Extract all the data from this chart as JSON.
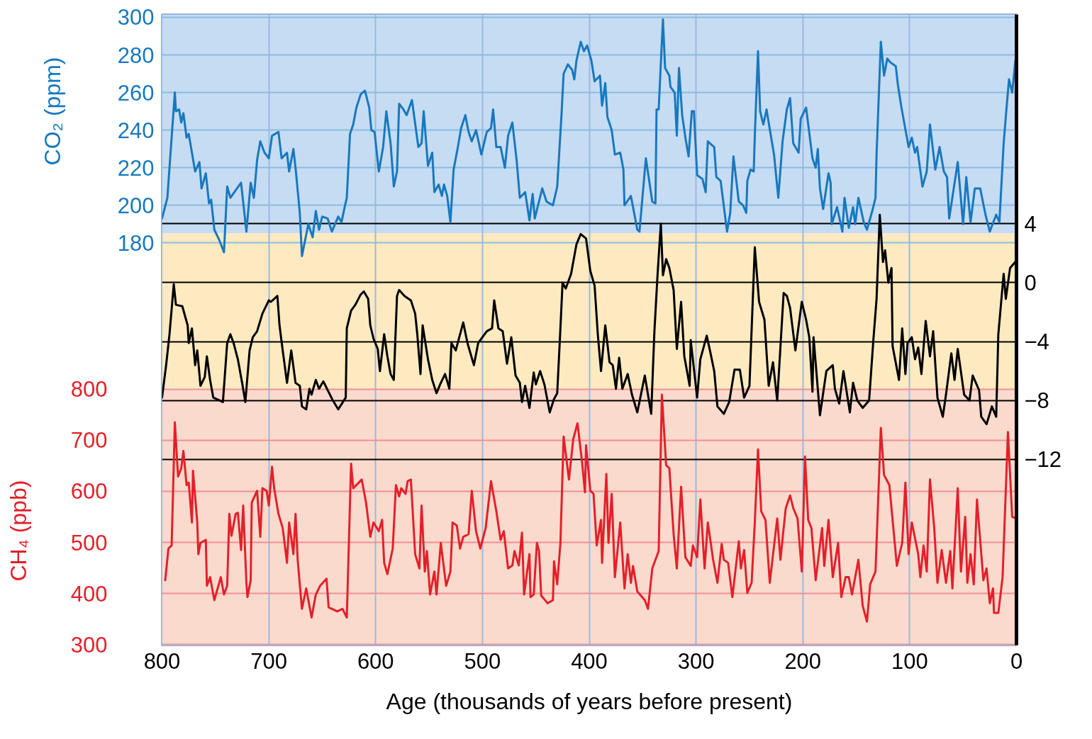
{
  "chart_data": {
    "type": "line",
    "xlabel": "Age (thousands of years before present)",
    "ylabel": "CO₂ (ppm)",
    "y3label": "CH₄ (ppb)",
    "xlim": [
      800,
      0
    ],
    "xticks": [
      800,
      700,
      600,
      500,
      400,
      300,
      200,
      100,
      0
    ],
    "ylim": [
      -34,
      301.5
    ],
    "yticks": [
      180,
      200,
      220,
      240,
      260,
      280,
      300
    ],
    "y2lim": [
      -24.6,
      18.2
    ],
    "y2ticks": [
      {
        "value": -12,
        "label": "−12"
      },
      {
        "value": -8,
        "label": "−8"
      },
      {
        "value": -4,
        "label": "−4"
      },
      0,
      4
    ],
    "y3lim": [
      299,
      1533
    ],
    "y3ticks": [
      300,
      400,
      500,
      600,
      700,
      800
    ],
    "grid": true,
    "bands": [
      {
        "axis": "y",
        "from": 185,
        "to": 301.5,
        "color": "#c6dcf2"
      },
      {
        "axis": "y",
        "from": 102,
        "to": 185,
        "color": "#fdeac0"
      },
      {
        "axis": "y3",
        "from": 299,
        "to": 800,
        "color": "#f9dacd"
      }
    ],
    "series": [
      {
        "color": "#1878be",
        "axis": "y",
        "x": [
          800,
          795,
          788,
          787,
          784,
          782,
          780,
          777,
          775,
          769,
          765,
          763,
          759,
          756,
          754,
          751,
          746,
          742,
          739,
          736,
          726,
          721,
          717,
          714,
          711,
          708,
          704,
          700,
          697,
          691,
          688,
          683,
          681,
          677,
          675,
          671,
          669,
          663,
          659,
          656,
          653,
          650,
          645,
          641,
          635,
          632,
          629,
          627,
          624,
          621,
          618,
          614,
          610,
          606,
          604,
          601,
          597,
          593,
          590,
          586,
          583,
          580,
          578,
          574,
          571,
          566,
          560,
          557,
          555,
          551,
          547,
          545,
          541,
          538,
          536,
          533,
          530,
          527,
          523,
          520,
          516,
          513,
          510,
          506,
          501,
          496,
          492,
          490,
          487,
          483,
          479,
          476,
          472,
          468,
          465,
          460,
          456,
          453,
          451,
          444,
          440,
          434,
          430,
          426,
          424,
          420,
          416,
          414,
          412,
          408,
          405,
          402,
          398,
          395,
          390,
          388,
          385,
          383,
          379,
          376,
          371,
          368,
          367,
          361,
          355,
          353,
          347,
          341,
          338,
          337,
          335,
          331,
          329,
          325,
          324,
          320,
          318,
          316,
          313,
          310,
          307,
          304,
          302,
          299,
          294,
          291,
          289,
          283,
          281,
          277,
          271,
          268,
          265,
          260,
          256,
          253,
          252,
          249,
          246,
          245,
          242,
          240,
          237,
          234,
          232,
          227,
          223,
          219,
          215,
          212,
          209,
          204,
          202,
          197,
          191,
          188,
          186,
          184,
          181,
          176,
          174,
          173,
          168,
          163,
          161,
          157,
          153,
          151,
          148,
          143,
          140,
          135,
          132,
          131,
          127,
          124,
          121,
          118,
          113,
          111,
          108,
          101,
          98,
          95,
          93,
          88,
          84,
          81,
          76,
          72,
          68,
          65,
          63,
          55,
          50,
          47,
          43,
          39,
          34,
          29,
          25,
          19,
          16,
          12,
          9,
          7,
          4,
          1,
          0
        ],
        "values": [
          193,
          204,
          260,
          250,
          251,
          244,
          249,
          236,
          238,
          218,
          223,
          209,
          217,
          201,
          203,
          187,
          181,
          175,
          210,
          204,
          212,
          186,
          212,
          204,
          224,
          234,
          228,
          225,
          237,
          239,
          225,
          228,
          218,
          230,
          220,
          196,
          173,
          190,
          183,
          197,
          187,
          194,
          193,
          186,
          194,
          191,
          199,
          204,
          238,
          243,
          252,
          259,
          261,
          252,
          240,
          239,
          218,
          231,
          250,
          233,
          210,
          218,
          254,
          251,
          248,
          256,
          231,
          233,
          250,
          221,
          228,
          207,
          211,
          205,
          211,
          205,
          191,
          219,
          231,
          241,
          248,
          239,
          234,
          240,
          227,
          239,
          241,
          251,
          231,
          231,
          220,
          237,
          244,
          224,
          204,
          207,
          192,
          206,
          193,
          209,
          202,
          200,
          210,
          248,
          270,
          275,
          272,
          267,
          277,
          287,
          282,
          285,
          277,
          266,
          269,
          253,
          265,
          247,
          240,
          227,
          228,
          219,
          200,
          205,
          187,
          186,
          225,
          202,
          201,
          251,
          251,
          299,
          273,
          269,
          263,
          260,
          237,
          273,
          248,
          236,
          226,
          250,
          250,
          216,
          214,
          207,
          234,
          231,
          215,
          213,
          186,
          196,
          226,
          202,
          200,
          196,
          213,
          219,
          218,
          237,
          282,
          250,
          243,
          251,
          244,
          227,
          204,
          234,
          251,
          257,
          233,
          228,
          246,
          252,
          225,
          220,
          230,
          209,
          198,
          217,
          212,
          190,
          199,
          186,
          204,
          188,
          199,
          190,
          204,
          191,
          187,
          197,
          204,
          227,
          287,
          269,
          278,
          276,
          274,
          264,
          253,
          231,
          236,
          228,
          231,
          210,
          218,
          243,
          219,
          231,
          218,
          215,
          193,
          223,
          190,
          215,
          191,
          209,
          209,
          195,
          186,
          195,
          191,
          233,
          254,
          267,
          260,
          277,
          278
        ]
      },
      {
        "color": "#000000",
        "axis": "y2",
        "x": [
          800,
          796,
          793,
          789,
          787,
          781,
          776,
          775,
          772,
          769,
          767,
          764,
          760,
          758,
          755,
          752,
          743,
          739,
          736,
          733,
          729,
          725,
          722,
          718,
          715,
          711,
          706,
          700,
          698,
          692,
          690,
          687,
          683,
          679,
          675,
          671,
          669,
          665,
          662,
          660,
          656,
          653,
          649,
          640,
          635,
          628,
          627,
          623,
          619,
          614,
          611,
          607,
          605,
          602,
          598,
          596,
          592,
          589,
          586,
          583,
          580,
          578,
          573,
          567,
          563,
          561,
          558,
          556,
          551,
          547,
          543,
          539,
          535,
          531,
          529,
          525,
          518,
          514,
          508,
          504,
          496,
          491,
          489,
          485,
          481,
          477,
          473,
          469,
          465,
          463,
          460,
          456,
          452,
          450,
          446,
          442,
          437,
          433,
          430,
          427,
          425,
          422,
          417,
          412,
          408,
          403,
          399,
          395,
          392,
          389,
          385,
          381,
          378,
          375,
          372,
          369,
          364,
          360,
          355,
          348,
          342,
          339,
          336,
          333,
          331,
          328,
          325,
          321,
          318,
          314,
          311,
          306,
          305,
          299,
          296,
          290,
          287,
          283,
          280,
          274,
          269,
          264,
          259,
          255,
          250,
          245,
          241,
          236,
          232,
          228,
          224,
          218,
          215,
          212,
          207,
          201,
          197,
          194,
          191,
          190,
          184,
          178,
          172,
          170,
          166,
          162,
          156,
          153,
          149,
          144,
          138,
          134,
          131,
          128,
          125,
          123,
          120,
          117,
          116,
          110,
          107,
          104,
          102,
          98,
          95,
          92,
          89,
          85,
          81,
          78,
          74,
          69,
          66,
          61,
          58,
          55,
          49,
          44,
          41,
          35,
          33,
          28,
          23,
          19,
          17,
          12,
          10,
          6,
          0
        ],
        "values": [
          -7.8,
          -5.5,
          -3.5,
          -0.1,
          -1.5,
          -1.6,
          -2.9,
          -4.1,
          -3.1,
          -5.6,
          -4.6,
          -7.0,
          -6.4,
          -5.0,
          -6.6,
          -7.8,
          -8.1,
          -4.1,
          -3.5,
          -4.1,
          -5.2,
          -6.8,
          -8.1,
          -4.6,
          -3.7,
          -3.3,
          -2.1,
          -1.2,
          -1.3,
          -0.9,
          -2.9,
          -4.6,
          -6.8,
          -4.6,
          -6.8,
          -7.0,
          -8.4,
          -8.6,
          -7.2,
          -7.6,
          -6.6,
          -7.2,
          -6.7,
          -8.0,
          -8.6,
          -7.8,
          -3.1,
          -1.9,
          -1.5,
          -0.8,
          -0.6,
          -1.1,
          -2.9,
          -3.8,
          -4.5,
          -6.0,
          -3.5,
          -5.0,
          -6.2,
          -6.6,
          -0.9,
          -0.5,
          -0.9,
          -1.2,
          -2.1,
          -3.5,
          -6.2,
          -2.9,
          -5.2,
          -6.6,
          -7.5,
          -6.8,
          -6.2,
          -7.2,
          -4.1,
          -4.6,
          -2.7,
          -4.1,
          -5.6,
          -4.1,
          -3.3,
          -3.1,
          -1.2,
          -3.1,
          -3.3,
          -5.5,
          -3.7,
          -6.3,
          -6.8,
          -8.1,
          -7.0,
          -8.5,
          -6.1,
          -6.9,
          -6.0,
          -6.9,
          -8.8,
          -7.9,
          -7.5,
          -3.1,
          0.0,
          -0.4,
          0.6,
          2.6,
          3.3,
          3.0,
          0.8,
          -0.2,
          -3.5,
          -6.0,
          -2.9,
          -5.4,
          -5.6,
          -7.2,
          -5.1,
          -7.2,
          -6.2,
          -7.6,
          -8.8,
          -6.3,
          -8.9,
          -3.3,
          0.6,
          4.0,
          0.5,
          1.6,
          1.0,
          -0.5,
          -4.5,
          -1.3,
          -5.0,
          -7.0,
          -3.9,
          -7.8,
          -5.2,
          -3.6,
          -4.6,
          -6.0,
          -8.4,
          -8.9,
          -8.1,
          -5.9,
          -5.9,
          -7.8,
          -7.0,
          2.4,
          -1.3,
          -2.5,
          -7.0,
          -5.4,
          -8.0,
          -0.7,
          -0.9,
          -1.7,
          -4.6,
          -1.3,
          -2.5,
          -3.7,
          -7.4,
          -3.7,
          -9.0,
          -6.0,
          -5.6,
          -7.2,
          -8.2,
          -6.0,
          -8.8,
          -6.8,
          -8.0,
          -8.5,
          -8.0,
          -3.9,
          -1.1,
          4.6,
          1.4,
          2.2,
          0.0,
          1.0,
          -4.3,
          -6.6,
          -3.1,
          -6.2,
          -4.1,
          -3.7,
          -5.2,
          -4.4,
          -6.2,
          -2.6,
          -5.0,
          -3.3,
          -7.8,
          -9.1,
          -7.6,
          -4.8,
          -6.6,
          -4.5,
          -7.6,
          -8.0,
          -6.3,
          -7.3,
          -9.1,
          -9.6,
          -8.4,
          -9.1,
          -3.5,
          0.6,
          -1.1,
          1.0,
          1.5
        ]
      },
      {
        "color": "#e3202a",
        "axis": "y3",
        "x": [
          797,
          794,
          791,
          788,
          785,
          782,
          780,
          777,
          775,
          772,
          771,
          767,
          766,
          764,
          759,
          758,
          755,
          751,
          745,
          742,
          739,
          737,
          735,
          731,
          729,
          726,
          724,
          721,
          720,
          717,
          716,
          711,
          708,
          706,
          702,
          700,
          697,
          695,
          691,
          687,
          683,
          681,
          677,
          675,
          673,
          669,
          665,
          660,
          656,
          652,
          646,
          644,
          636,
          631,
          627,
          623,
          621,
          613,
          609,
          605,
          602,
          597,
          594,
          592,
          589,
          584,
          581,
          578,
          576,
          572,
          570,
          567,
          563,
          559,
          557,
          554,
          552,
          549,
          545,
          543,
          539,
          534,
          530,
          528,
          524,
          521,
          518,
          513,
          510,
          506,
          502,
          497,
          492,
          487,
          483,
          480,
          476,
          472,
          470,
          466,
          463,
          461,
          456,
          455,
          452,
          449,
          447,
          445,
          439,
          434,
          433,
          430,
          427,
          424,
          419,
          415,
          411,
          407,
          404,
          403,
          399,
          396,
          393,
          389,
          388,
          384,
          382,
          379,
          376,
          371,
          367,
          364,
          361,
          359,
          355,
          348,
          345,
          341,
          335,
          332,
          328,
          325,
          321,
          318,
          314,
          310,
          305,
          303,
          299,
          296,
          292,
          289,
          284,
          280,
          276,
          274,
          270,
          266,
          260,
          258,
          255,
          252,
          248,
          245,
          242,
          239,
          235,
          231,
          224,
          221,
          218,
          216,
          212,
          209,
          205,
          201,
          198,
          195,
          192,
          188,
          182,
          180,
          176,
          172,
          167,
          164,
          160,
          157,
          154,
          148,
          144,
          140,
          137,
          132,
          127,
          124,
          119,
          112,
          107,
          104,
          101,
          98,
          92,
          90,
          87,
          84,
          81,
          77,
          74,
          70,
          66,
          62,
          60,
          55,
          52,
          48,
          46,
          43,
          40,
          37,
          31,
          28,
          25,
          22,
          21,
          17,
          13,
          8,
          4,
          0
        ],
        "values": [
          426,
          488,
          494,
          735,
          629,
          645,
          679,
          612,
          617,
          539,
          640,
          539,
          477,
          499,
          505,
          415,
          432,
          387,
          432,
          398,
          415,
          556,
          513,
          556,
          558,
          485,
          572,
          421,
          393,
          426,
          578,
          601,
          511,
          606,
          601,
          572,
          648,
          606,
          556,
          528,
          460,
          539,
          477,
          556,
          466,
          370,
          410,
          353,
          398,
          415,
          429,
          373,
          365,
          370,
          353,
          654,
          606,
          623,
          578,
          511,
          539,
          522,
          544,
          460,
          438,
          488,
          612,
          590,
          606,
          595,
          620,
          623,
          477,
          449,
          572,
          443,
          483,
          398,
          443,
          398,
          499,
          415,
          443,
          539,
          533,
          488,
          511,
          516,
          601,
          522,
          488,
          528,
          620,
          561,
          505,
          522,
          449,
          455,
          483,
          455,
          519,
          398,
          477,
          393,
          398,
          499,
          483,
          396,
          381,
          387,
          463,
          418,
          499,
          707,
          623,
          702,
          733,
          662,
          598,
          690,
          601,
          595,
          494,
          544,
          460,
          634,
          499,
          595,
          432,
          539,
          410,
          477,
          421,
          454,
          404,
          387,
          370,
          449,
          483,
          789,
          651,
          645,
          516,
          449,
          609,
          471,
          454,
          494,
          471,
          584,
          449,
          539,
          466,
          421,
          497,
          466,
          460,
          393,
          502,
          449,
          485,
          401,
          421,
          539,
          682,
          561,
          544,
          421,
          547,
          466,
          528,
          567,
          592,
          567,
          547,
          443,
          668,
          544,
          528,
          426,
          528,
          454,
          544,
          432,
          499,
          393,
          432,
          432,
          398,
          466,
          376,
          345,
          418,
          443,
          724,
          632,
          612,
          454,
          499,
          617,
          477,
          539,
          477,
          432,
          494,
          443,
          623,
          528,
          421,
          485,
          421,
          483,
          410,
          606,
          443,
          550,
          421,
          477,
          418,
          584,
          426,
          449,
          381,
          410,
          362,
          362,
          432,
          716,
          550,
          547
        ]
      }
    ]
  }
}
